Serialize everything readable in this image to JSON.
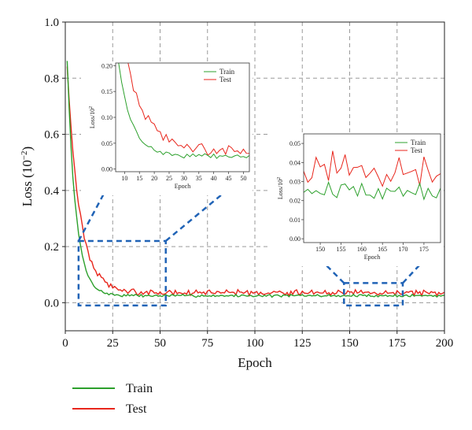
{
  "chart_data": {
    "type": "line",
    "xlabel": "Epoch",
    "ylabel": "Loss (10",
    "ylabel_exp": "−2",
    "ylabel_close": ")",
    "xlim": [
      0,
      200
    ],
    "ylim": [
      -0.1,
      1.0
    ],
    "x_ticks": [
      0,
      25,
      50,
      75,
      100,
      125,
      150,
      175,
      200
    ],
    "y_ticks": [
      0.0,
      0.2,
      0.4,
      0.6,
      0.8,
      1.0
    ],
    "x_tick_labels": [
      "0",
      "25",
      "50",
      "75",
      "100",
      "125",
      "150",
      "175",
      "200"
    ],
    "y_tick_labels": [
      "0.0",
      "0.2",
      "0.4",
      "0.6",
      "0.8",
      "1.0"
    ],
    "grid": true,
    "legend_position": "bottom-left",
    "series": [
      {
        "name": "Train",
        "color": "#2ca02c",
        "start": 0.86,
        "plateau": 0.025,
        "decay": 4.5,
        "noise": 0.006
      },
      {
        "name": "Test",
        "color": "#e8261c",
        "start": 0.84,
        "plateau": 0.035,
        "decay": 6.5,
        "noise": 0.012
      }
    ],
    "zoom_regions": [
      {
        "xlim": [
          7,
          53
        ],
        "ylim": [
          -0.01,
          0.22
        ]
      },
      {
        "xlim": [
          147,
          178
        ],
        "ylim": [
          -0.01,
          0.07
        ]
      }
    ],
    "insets": [
      {
        "xlim": [
          7,
          52
        ],
        "ylim": [
          -0.005,
          0.205
        ],
        "x_ticks": [
          10,
          15,
          20,
          25,
          30,
          35,
          40,
          45,
          50
        ],
        "x_tick_labels": [
          "10",
          "15",
          "20",
          "25",
          "30",
          "35",
          "40",
          "45",
          "50"
        ],
        "y_ticks": [
          0.0,
          0.05,
          0.1,
          0.15,
          0.2
        ],
        "y_tick_labels": [
          "0.00",
          "0.05",
          "0.10",
          "0.15",
          "0.20"
        ],
        "xlabel": "Epoch",
        "ylabel": "Loss/10",
        "legend": [
          "Train",
          "Test"
        ]
      },
      {
        "xlim": [
          146,
          179
        ],
        "ylim": [
          -0.002,
          0.055
        ],
        "x_ticks": [
          150,
          155,
          160,
          165,
          170,
          175
        ],
        "x_tick_labels": [
          "150",
          "155",
          "160",
          "165",
          "170",
          "175"
        ],
        "y_ticks": [
          0.0,
          0.01,
          0.02,
          0.03,
          0.04,
          0.05
        ],
        "y_tick_labels": [
          "0.00",
          "0.01",
          "0.02",
          "0.03",
          "0.04",
          "0.05"
        ],
        "xlabel": "Epoch",
        "ylabel": "Loss/10",
        "legend": [
          "Train",
          "Test"
        ]
      }
    ]
  },
  "legend": {
    "items": [
      {
        "label": "Train",
        "color": "#2ca02c"
      },
      {
        "label": "Test",
        "color": "#e8261c"
      }
    ]
  }
}
